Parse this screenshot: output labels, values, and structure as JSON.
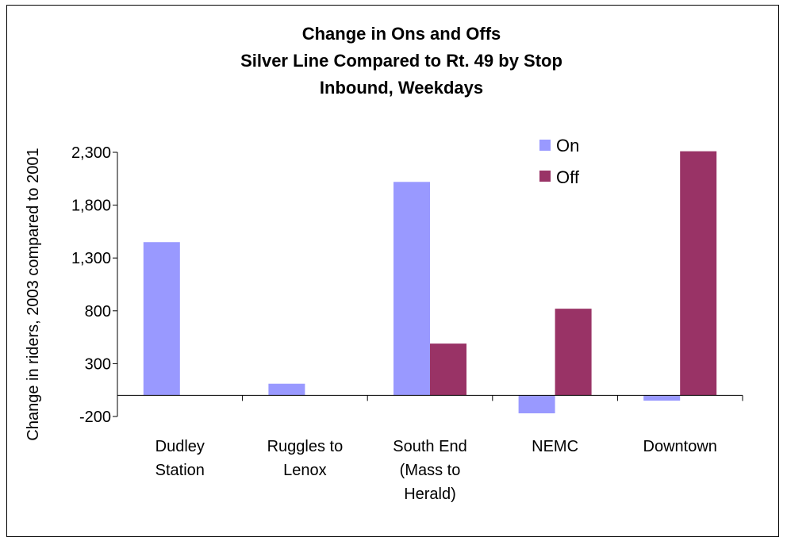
{
  "chart_data": {
    "type": "bar",
    "title_lines": [
      "Change in Ons and Offs",
      "Silver Line Compared to Rt. 49 by Stop",
      "Inbound, Weekdays"
    ],
    "ylabel": "Change in riders, 2003 compared to 2001",
    "xlabel": "",
    "categories": [
      [
        "Dudley",
        "Station"
      ],
      [
        "Ruggles to",
        "Lenox"
      ],
      [
        "South End",
        "(Mass to",
        "Herald)"
      ],
      [
        "NEMC"
      ],
      [
        "Downtown"
      ]
    ],
    "series": [
      {
        "name": "On",
        "color": "#9999ff",
        "values": [
          1450,
          110,
          2020,
          -170,
          -50
        ]
      },
      {
        "name": "Off",
        "color": "#993366",
        "values": [
          0,
          0,
          490,
          820,
          2310
        ]
      }
    ],
    "ylim": [
      -200,
      2300
    ],
    "yticks": [
      2300,
      1800,
      1300,
      800,
      300,
      -200
    ],
    "ytick_labels": [
      "2,300",
      "1,800",
      "1,300",
      "800",
      "300",
      "-200"
    ],
    "grid": false,
    "legend_position": "top-right"
  }
}
